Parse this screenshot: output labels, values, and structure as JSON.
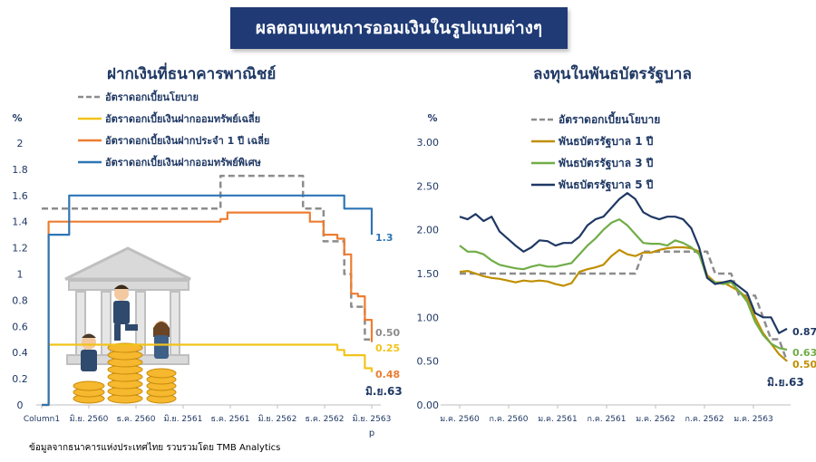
{
  "header": {
    "title": "ผลตอบแทนการออมเงินในรูปแบบต่างๆ"
  },
  "source_note": "ข้อมูลจากธนาคารแห่งประเทศไทย  รวบรวมโดย TMB Analytics",
  "colors": {
    "banner": "#1f3a75",
    "policy": "#8c8c8c",
    "yellow": "#f2c31b",
    "orange": "#ed7d31",
    "blue": "#2e75b6",
    "bond1": "#bf8f00",
    "bond3": "#70ad47",
    "bond5": "#1f3864"
  },
  "chart_data": [
    {
      "type": "line",
      "title": "ฝากเงินที่ธนาคารพาณิชย์",
      "ylabel": "%",
      "ylim": [
        0,
        2
      ],
      "yticks": [
        "0",
        "0.2",
        "0.4",
        "0.6",
        "0.8",
        "1",
        "1.2",
        "1.4",
        "1.6",
        "1.8",
        "2"
      ],
      "xticks": [
        "Column1",
        "มิ.ย. 2560",
        "ธ.ค. 2560",
        "มิ.ย. 2561",
        "ธ.ค. 2561",
        "มิ.ย. 2562",
        "ธ.ค. 2562",
        "มิ.ย. 2563"
      ],
      "x_extra_label": "p",
      "period_label": "มิ.ย.63",
      "series": [
        {
          "name": "อัตราดอกเบี้ยนโยบาย",
          "color": "#8c8c8c",
          "dash": true,
          "end_label": "0.50",
          "values": [
            1.5,
            1.5,
            1.5,
            1.5,
            1.5,
            1.5,
            1.5,
            1.5,
            1.5,
            1.5,
            1.5,
            1.5,
            1.5,
            1.5,
            1.5,
            1.5,
            1.5,
            1.5,
            1.5,
            1.5,
            1.5,
            1.5,
            1.5,
            1.5,
            1.5,
            1.5,
            1.75,
            1.75,
            1.75,
            1.75,
            1.75,
            1.75,
            1.75,
            1.75,
            1.75,
            1.75,
            1.75,
            1.75,
            1.5,
            1.5,
            1.5,
            1.25,
            1.25,
            1.25,
            1.0,
            0.75,
            0.75,
            0.5,
            0.5
          ]
        },
        {
          "name": "อัตราดอกเบี้ยเงินฝากออมทรัพย์เฉลี่ย",
          "color": "#f2c31b",
          "dash": false,
          "end_label": "0.25",
          "values": [
            0,
            0.46,
            0.46,
            0.46,
            0.46,
            0.46,
            0.46,
            0.46,
            0.46,
            0.46,
            0.46,
            0.46,
            0.46,
            0.46,
            0.46,
            0.46,
            0.46,
            0.46,
            0.46,
            0.46,
            0.46,
            0.46,
            0.46,
            0.46,
            0.46,
            0.46,
            0.46,
            0.46,
            0.46,
            0.46,
            0.46,
            0.46,
            0.46,
            0.46,
            0.46,
            0.46,
            0.46,
            0.46,
            0.46,
            0.46,
            0.46,
            0.46,
            0.46,
            0.42,
            0.38,
            0.38,
            0.38,
            0.28,
            0.25
          ]
        },
        {
          "name": "อัตราดอกเบี้ยเงินฝากประจำ 1 ปี เฉลี่ย",
          "color": "#ed7d31",
          "dash": false,
          "end_label": "0.48",
          "values": [
            0,
            1.4,
            1.4,
            1.4,
            1.4,
            1.4,
            1.4,
            1.4,
            1.4,
            1.4,
            1.4,
            1.4,
            1.4,
            1.4,
            1.4,
            1.4,
            1.4,
            1.4,
            1.4,
            1.4,
            1.4,
            1.4,
            1.4,
            1.4,
            1.4,
            1.4,
            1.42,
            1.47,
            1.47,
            1.47,
            1.47,
            1.47,
            1.47,
            1.47,
            1.47,
            1.47,
            1.47,
            1.47,
            1.47,
            1.4,
            1.4,
            1.3,
            1.3,
            1.27,
            1.15,
            0.85,
            0.83,
            0.65,
            0.48
          ]
        },
        {
          "name": "อัตราดอกเบี้ยเงินฝากออมทรัพย์พิเศษ",
          "color": "#2e75b6",
          "dash": false,
          "end_label": "1.3",
          "values": [
            0,
            1.3,
            1.3,
            1.3,
            1.6,
            1.6,
            1.6,
            1.6,
            1.6,
            1.6,
            1.6,
            1.6,
            1.6,
            1.6,
            1.6,
            1.6,
            1.6,
            1.6,
            1.6,
            1.6,
            1.6,
            1.6,
            1.6,
            1.6,
            1.6,
            1.6,
            1.6,
            1.6,
            1.6,
            1.6,
            1.6,
            1.6,
            1.6,
            1.6,
            1.6,
            1.6,
            1.6,
            1.6,
            1.6,
            1.6,
            1.6,
            1.6,
            1.6,
            1.6,
            1.5,
            1.5,
            1.5,
            1.5,
            1.3
          ]
        }
      ]
    },
    {
      "type": "line",
      "title": "ลงทุนในพันธบัตรรัฐบาล",
      "ylabel": "%",
      "ylim": [
        0,
        3
      ],
      "yticks": [
        "0.00",
        "0.50",
        "1.00",
        "1.50",
        "2.00",
        "2.50",
        "3.00"
      ],
      "xticks": [
        "ม.ค. 2560",
        "ก.ค. 2560",
        "ม.ค. 2561",
        "ก.ค. 2561",
        "ม.ค. 2562",
        "ก.ค. 2562",
        "ม.ค. 2563"
      ],
      "period_label": "มิ.ย.63",
      "series": [
        {
          "name": "อัตราดอกเบี้ยนโยบาย",
          "color": "#8c8c8c",
          "dash": true,
          "end_label": "",
          "values": [
            1.5,
            1.5,
            1.5,
            1.5,
            1.5,
            1.5,
            1.5,
            1.5,
            1.5,
            1.5,
            1.5,
            1.5,
            1.5,
            1.5,
            1.5,
            1.5,
            1.5,
            1.5,
            1.5,
            1.5,
            1.5,
            1.5,
            1.5,
            1.75,
            1.75,
            1.75,
            1.75,
            1.75,
            1.75,
            1.75,
            1.75,
            1.75,
            1.5,
            1.5,
            1.5,
            1.25,
            1.25,
            1.25,
            1.0,
            0.75,
            0.75,
            0.5
          ]
        },
        {
          "name": "พันธบัตรรัฐบาล 1 ปี",
          "color": "#bf8f00",
          "dash": false,
          "end_label": "0.50",
          "values": [
            1.52,
            1.53,
            1.5,
            1.47,
            1.45,
            1.44,
            1.42,
            1.4,
            1.42,
            1.41,
            1.42,
            1.41,
            1.38,
            1.36,
            1.39,
            1.52,
            1.55,
            1.57,
            1.6,
            1.7,
            1.77,
            1.72,
            1.7,
            1.74,
            1.74,
            1.77,
            1.79,
            1.8,
            1.8,
            1.79,
            1.75,
            1.48,
            1.4,
            1.4,
            1.35,
            1.3,
            1.22,
            1.0,
            0.82,
            0.7,
            0.58,
            0.5
          ]
        },
        {
          "name": "พันธบัตรรัฐบาล 3 ปี",
          "color": "#70ad47",
          "dash": false,
          "end_label": "0.63",
          "values": [
            1.82,
            1.75,
            1.75,
            1.72,
            1.65,
            1.6,
            1.58,
            1.56,
            1.55,
            1.58,
            1.6,
            1.58,
            1.58,
            1.6,
            1.62,
            1.72,
            1.82,
            1.9,
            2.0,
            2.08,
            2.12,
            2.05,
            1.95,
            1.85,
            1.84,
            1.84,
            1.82,
            1.88,
            1.85,
            1.8,
            1.72,
            1.45,
            1.4,
            1.38,
            1.4,
            1.3,
            1.18,
            0.95,
            0.8,
            0.7,
            0.65,
            0.63
          ]
        },
        {
          "name": "พันธบัตรรัฐบาล 5 ปี",
          "color": "#1f3864",
          "dash": false,
          "end_label": "0.87",
          "values": [
            2.15,
            2.12,
            2.18,
            2.1,
            2.15,
            1.98,
            1.9,
            1.82,
            1.75,
            1.8,
            1.88,
            1.87,
            1.82,
            1.85,
            1.85,
            1.92,
            2.05,
            2.12,
            2.15,
            2.25,
            2.35,
            2.42,
            2.35,
            2.2,
            2.15,
            2.12,
            2.15,
            2.15,
            2.12,
            2.02,
            1.8,
            1.45,
            1.38,
            1.4,
            1.42,
            1.35,
            1.28,
            1.05,
            1.0,
            1.0,
            0.82,
            0.87
          ]
        }
      ]
    }
  ]
}
